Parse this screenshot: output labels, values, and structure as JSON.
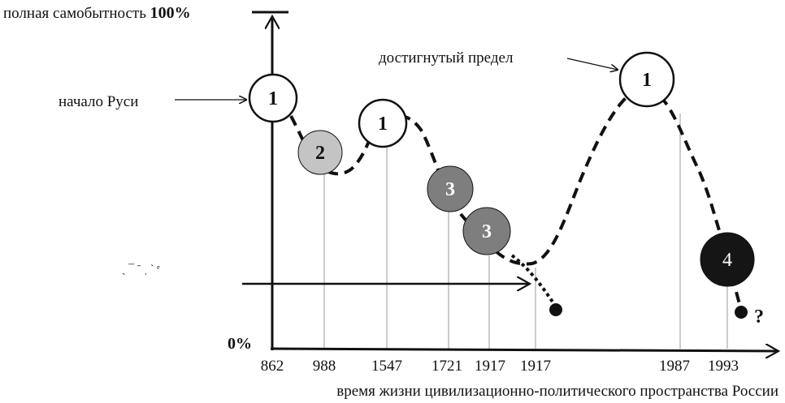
{
  "y_axis": {
    "top_label_prefix": "полная самобытность ",
    "top_label_value": "100%",
    "bottom_label": "0%"
  },
  "x_axis": {
    "caption": "время жизни цивилизационно-политического пространства России",
    "ticks": [
      "862",
      "988",
      "1547",
      "1721",
      "1917",
      "1917",
      "1987",
      "1993"
    ]
  },
  "annotations": {
    "start": "начало Руси",
    "peak": "достигнутый предел",
    "question": "?",
    "stray_text": "ˏ ¯ ˉ ˌ ˋ ᵉ"
  },
  "nodes": [
    {
      "label": "1",
      "fill": "#ffffff",
      "text_color": "#111111"
    },
    {
      "label": "2",
      "fill": "#c4c4c4",
      "text_color": "#111111"
    },
    {
      "label": "1",
      "fill": "#ffffff",
      "text_color": "#111111"
    },
    {
      "label": "3",
      "fill": "#7e7e7e",
      "text_color": "#ffffff"
    },
    {
      "label": "3",
      "fill": "#7e7e7e",
      "text_color": "#ffffff"
    },
    {
      "label": "1",
      "fill": "#ffffff",
      "text_color": "#111111"
    },
    {
      "label": "4",
      "fill": "#151515",
      "text_color": "#ffffff"
    }
  ],
  "colors": {
    "axis": "#111111",
    "guide": "#9a9a9a",
    "curve": "#111111"
  }
}
